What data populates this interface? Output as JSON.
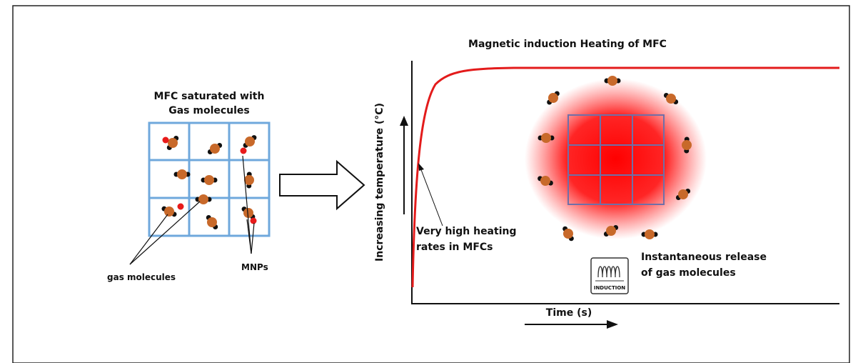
{
  "left_panel": {
    "title_lines": [
      "MFC saturated with",
      "Gas molecules"
    ],
    "gas_label": "gas molecules",
    "mnp_label": "MNPs"
  },
  "right_panel": {
    "title": "Magnetic induction Heating of MFC",
    "y_label": "Increasing temperature (°C)",
    "x_label": "Time (s)",
    "heating_note_lines": [
      "Very high heating",
      "rates in MFCs"
    ],
    "release_note_lines": [
      "Instantaneous release",
      "of gas molecules"
    ],
    "induction_icon": "INDUCTION"
  }
}
